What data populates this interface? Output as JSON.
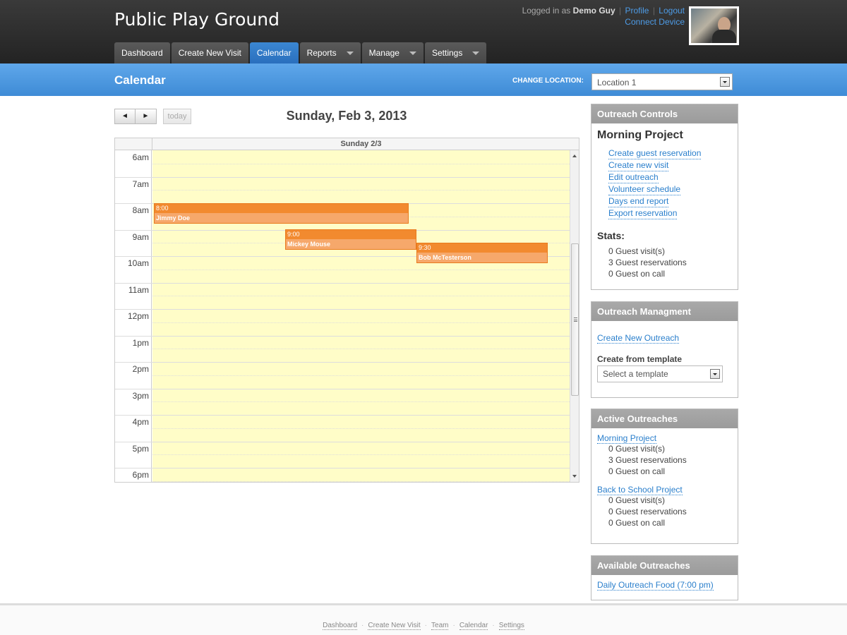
{
  "header": {
    "app_title": "Public Play Ground",
    "logged_in_prefix": "Logged in as",
    "user_name": "Demo Guy",
    "profile_link": "Profile",
    "logout_link": "Logout",
    "connect_device_link": "Connect Device",
    "separator": "|"
  },
  "tabs": [
    {
      "label": "Dashboard",
      "active": false,
      "dropdown": false
    },
    {
      "label": "Create New Visit",
      "active": false,
      "dropdown": false
    },
    {
      "label": "Calendar",
      "active": true,
      "dropdown": false
    },
    {
      "label": "Reports",
      "active": false,
      "dropdown": true
    },
    {
      "label": "Manage",
      "active": false,
      "dropdown": true
    },
    {
      "label": "Settings",
      "active": false,
      "dropdown": true
    }
  ],
  "subbar": {
    "title": "Calendar",
    "change_location_label": "CHANGE LOCATION:",
    "location_value": "Location 1"
  },
  "calendar": {
    "prev_glyph": "◄",
    "next_glyph": "►",
    "today_label": "today",
    "date_title": "Sunday, Feb 3, 2013",
    "day_header": "Sunday 2/3",
    "hours": [
      "6am",
      "7am",
      "8am",
      "9am",
      "10am",
      "11am",
      "12pm",
      "1pm",
      "2pm",
      "3pm",
      "4pm",
      "5pm",
      "6pm"
    ],
    "events": [
      {
        "time": "8:00",
        "title": "Jimmy Doe"
      },
      {
        "time": "9:00",
        "title": "Mickey Mouse"
      },
      {
        "time": "9:30",
        "title": "Bob McTesterson"
      }
    ]
  },
  "outreach_controls": {
    "heading": "Outreach Controls",
    "project_title": "Morning Project",
    "links": [
      "Create guest reservation",
      "Create new visit",
      "Edit outreach",
      "Volunteer schedule",
      "Days end report",
      "Export reservation"
    ],
    "stats_title": "Stats:",
    "stats": [
      "0 Guest visit(s)",
      "3 Guest reservations",
      "0 Guest on call"
    ]
  },
  "outreach_management": {
    "heading": "Outreach Managment",
    "create_link": "Create New Outreach",
    "template_label": "Create from template",
    "template_placeholder": "Select a template"
  },
  "active_outreaches": {
    "heading": "Active Outreaches",
    "items": [
      {
        "name": "Morning Project",
        "stats": [
          "0 Guest visit(s)",
          "3 Guest reservations",
          "0 Guest on call"
        ]
      },
      {
        "name": "Back to School Project",
        "stats": [
          "0 Guest visit(s)",
          "0 Guest reservations",
          "0 Guest on call"
        ]
      }
    ]
  },
  "available_outreaches": {
    "heading": "Available Outreaches",
    "items": [
      "Daily Outreach Food (7:00 pm)"
    ]
  },
  "footer": {
    "links": [
      "Dashboard",
      "Create New Visit",
      "Team",
      "Calendar",
      "Settings"
    ],
    "separator": "·"
  },
  "colors": {
    "header_bg": "#2b2b2b",
    "accent_blue": "#3e8bd6",
    "calendar_day_bg": "#fffdc8",
    "event_orange": "#f28a2f",
    "panel_head": "#a3a3a3"
  }
}
